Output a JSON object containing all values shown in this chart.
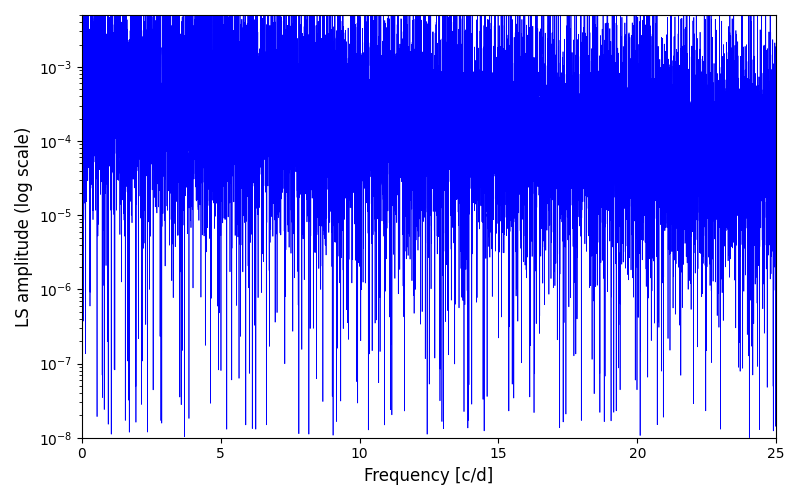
{
  "title": "",
  "xlabel": "Frequency [c/d]",
  "ylabel": "LS amplitude (log scale)",
  "xlim": [
    0,
    25
  ],
  "ylim": [
    1e-08,
    0.005
  ],
  "line_color": "#0000ff",
  "line_width": 0.5,
  "freq_min": 0.0,
  "freq_max": 25.0,
  "n_points": 12000,
  "seed": 7,
  "figsize": [
    8.0,
    5.0
  ],
  "dpi": 100
}
